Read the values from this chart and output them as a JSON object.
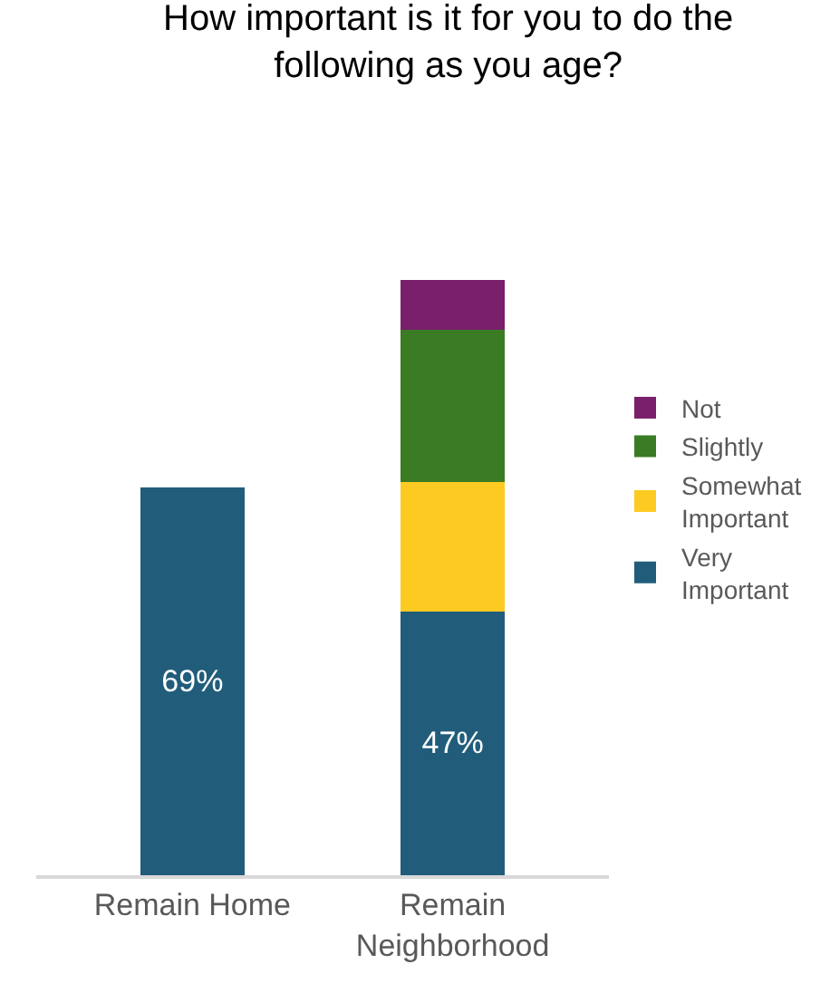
{
  "chart_data": {
    "type": "bar",
    "title": "How important is it for you to do the following as you age?",
    "categories": [
      "Remain Home",
      "Remain Neighborhood"
    ],
    "stacked": true,
    "series": [
      {
        "name": "Very Important",
        "color": "#215d7b",
        "values": [
          69,
          47
        ],
        "value_labels": [
          "69%",
          "47%"
        ]
      },
      {
        "name": "Somewhat Important",
        "color": "#fdca21",
        "values": [
          null,
          23
        ]
      },
      {
        "name": "Slightly",
        "color": "#3a7b24",
        "values": [
          null,
          27
        ]
      },
      {
        "name": "Not",
        "color": "#7a1f6a",
        "values": [
          null,
          9
        ]
      }
    ],
    "legend": "right"
  }
}
